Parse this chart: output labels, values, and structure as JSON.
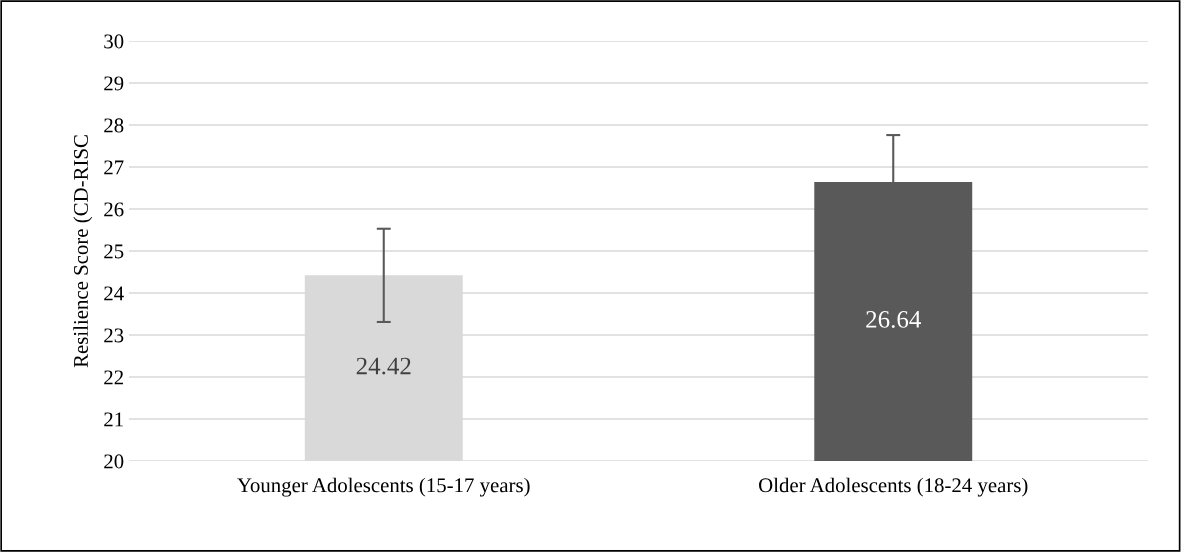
{
  "chart_data": {
    "type": "bar",
    "ylabel": "Resilience Score (CD-RISC",
    "categories": [
      "Younger Adolescents (15-17 years)",
      "Older Adolescents (18-24 years)"
    ],
    "values": [
      24.42,
      26.64
    ],
    "colors": [
      "#d9d9d9",
      "#595959"
    ],
    "errors": [
      1.11,
      1.12
    ],
    "ylim": [
      20,
      30
    ],
    "yticks": [
      20,
      21,
      22,
      23,
      24,
      25,
      26,
      27,
      28,
      29,
      30
    ],
    "grid": "y",
    "data_labels": true,
    "legend": false
  }
}
